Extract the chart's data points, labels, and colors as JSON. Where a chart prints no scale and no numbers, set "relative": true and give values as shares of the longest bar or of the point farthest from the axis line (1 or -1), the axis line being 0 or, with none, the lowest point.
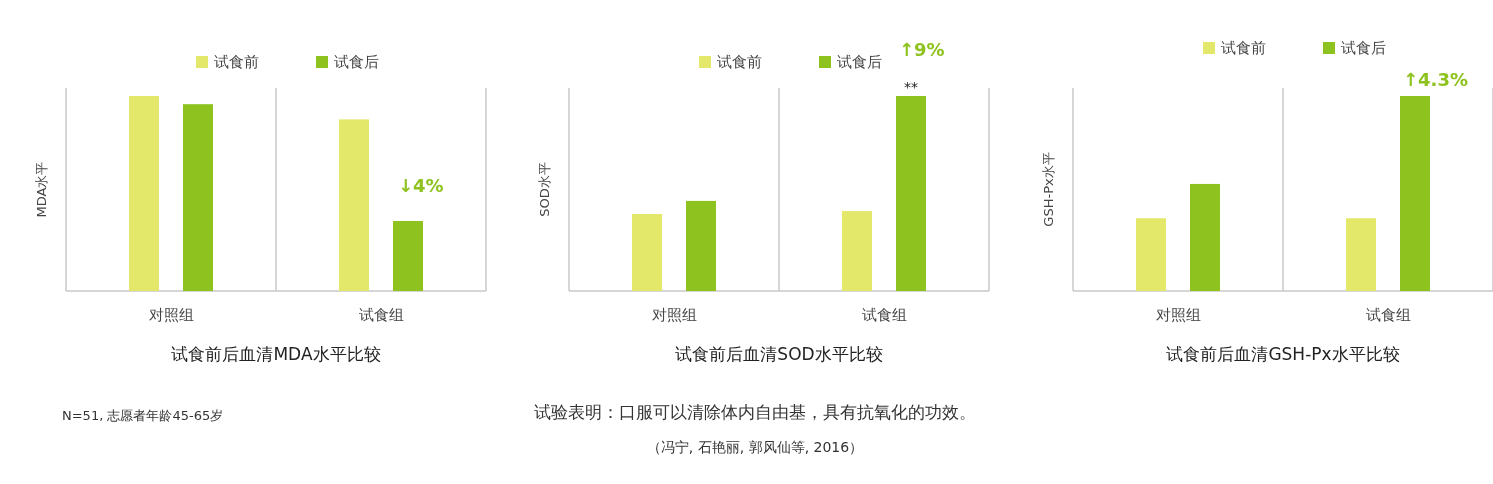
{
  "chart_data": [
    {
      "type": "bar",
      "relative": true,
      "title": "试食前后血清MDA水平比较",
      "ylabel": "MDA水平",
      "categories": [
        "对照组",
        "试食组"
      ],
      "legend": "top",
      "series": [
        {
          "name": "试食前",
          "color": "#e3e86a",
          "values": [
            1,
            0.88
          ]
        },
        {
          "name": "试食后",
          "color": "#8dc21f",
          "values": [
            0.958,
            0.359
          ]
        }
      ],
      "annotations": [
        "↓4%",
        "N=51, 志愿者年龄45-65岁"
      ]
    },
    {
      "type": "bar",
      "relative": true,
      "title": "试食前后血清SOD水平比较",
      "ylabel": "SOD水平",
      "categories": [
        "对照组",
        "试食组"
      ],
      "legend": "top",
      "series": [
        {
          "name": "试食前",
          "color": "#e3e86a",
          "values": [
            0.395,
            0.41
          ]
        },
        {
          "name": "试食后",
          "color": "#8dc21f",
          "values": [
            0.462,
            1
          ]
        }
      ],
      "annotations": [
        "↑9%",
        "**",
        "试验表明：口服可以清除体内自由基，具有抗氧化的功效。",
        "（冯宁, 石艳丽, 郭风仙等, 2016）"
      ]
    },
    {
      "type": "bar",
      "relative": true,
      "title": "试食前后血清GSH-Px水平比较",
      "ylabel": "GSH-Px水平",
      "categories": [
        "对照组",
        "试食组"
      ],
      "legend": "top",
      "series": [
        {
          "name": "试食前",
          "color": "#e3e86a",
          "values": [
            0.373,
            0.373
          ]
        },
        {
          "name": "试食后",
          "color": "#8dc21f",
          "values": [
            0.549,
            1
          ]
        }
      ],
      "annotations": [
        "↑4.3%"
      ]
    }
  ]
}
